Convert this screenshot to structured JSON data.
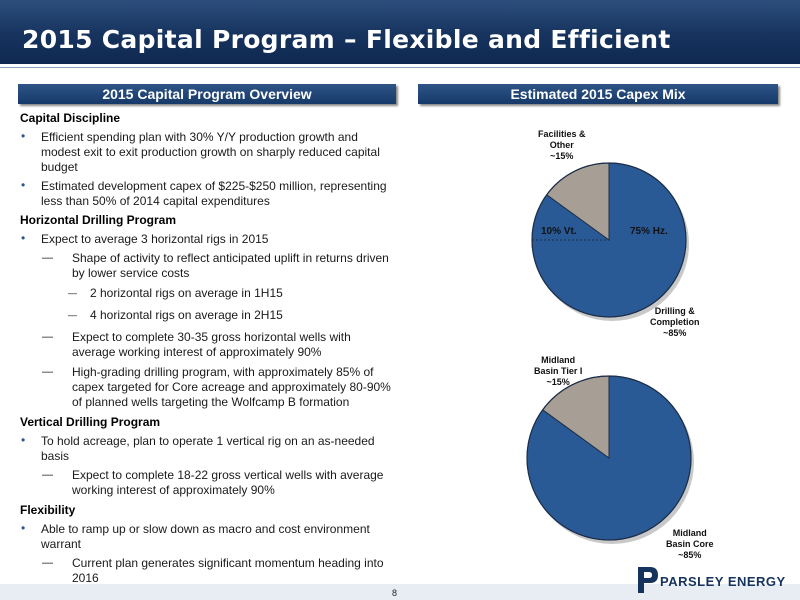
{
  "header": {
    "title": "2015 Capital Program – Flexible and Efficient"
  },
  "left_banner": "2015 Capital Program Overview",
  "right_banner": "Estimated 2015 Capex Mix",
  "sections": {
    "capital_discipline": {
      "heading": "Capital Discipline",
      "b1": "Efficient spending plan with 30% Y/Y production growth and modest exit to exit production growth on sharply reduced capital budget",
      "b2": "Estimated development capex of $225-$250 million, representing less than 50% of 2014 capital expenditures"
    },
    "horizontal": {
      "heading": "Horizontal Drilling Program",
      "b1": "Expect to average 3 horizontal rigs in 2015",
      "s1": "Shape of activity to reflect anticipated uplift in returns driven by lower service costs",
      "ss1": "2 horizontal rigs on average in 1H15",
      "ss2": "4 horizontal rigs on average in 2H15",
      "s2": "Expect to complete 30-35 gross horizontal wells with average working interest of approximately 90%",
      "s3": "High-grading drilling program, with approximately 85% of capex targeted for Core acreage and approximately 80-90% of planned wells targeting the Wolfcamp B formation"
    },
    "vertical": {
      "heading": "Vertical Drilling Program",
      "b1": "To hold acreage, plan to operate 1 vertical rig on an as-needed basis",
      "s1": "Expect to complete 18-22 gross vertical wells with average working interest of approximately 90%"
    },
    "flexibility": {
      "heading": "Flexibility",
      "b1": "Able to ramp up or slow down as macro and cost environment warrant",
      "s1": "Current plan generates significant momentum heading into 2016"
    }
  },
  "bullet_char": "•",
  "dash_char": "—",
  "colors": {
    "blue": "#2a5a96",
    "gray": "#a79e95",
    "navy": "#16335e"
  },
  "chart_data": [
    {
      "type": "pie",
      "slices": [
        {
          "label": "Drilling &\nCompletion\n~85%",
          "value": 85,
          "color": "#2a5a96"
        },
        {
          "label": "Facilities &\nOther\n~15%",
          "value": 15,
          "color": "#a79e95"
        }
      ],
      "inner_labels": [
        "10% Vt.",
        "75% Hz."
      ]
    },
    {
      "type": "pie",
      "slices": [
        {
          "label": "Midland\nBasin Core\n~85%",
          "value": 85,
          "color": "#2a5a96"
        },
        {
          "label": "Midland\nBasin Tier I\n~15%",
          "value": 15,
          "color": "#a79e95"
        }
      ]
    }
  ],
  "pie_labels": {
    "p1_facilities": "Facilities &\nOther\n~15%",
    "p1_drilling": "Drilling &\nCompletion\n~85%",
    "p1_vt": "10% Vt.",
    "p1_hz": "75% Hz.",
    "p2_tier": "Midland\nBasin Tier I\n~15%",
    "p2_core": "Midland\nBasin Core\n~85%"
  },
  "footer": {
    "page": "8",
    "logo_text": "PARSLEY ENERGY"
  }
}
